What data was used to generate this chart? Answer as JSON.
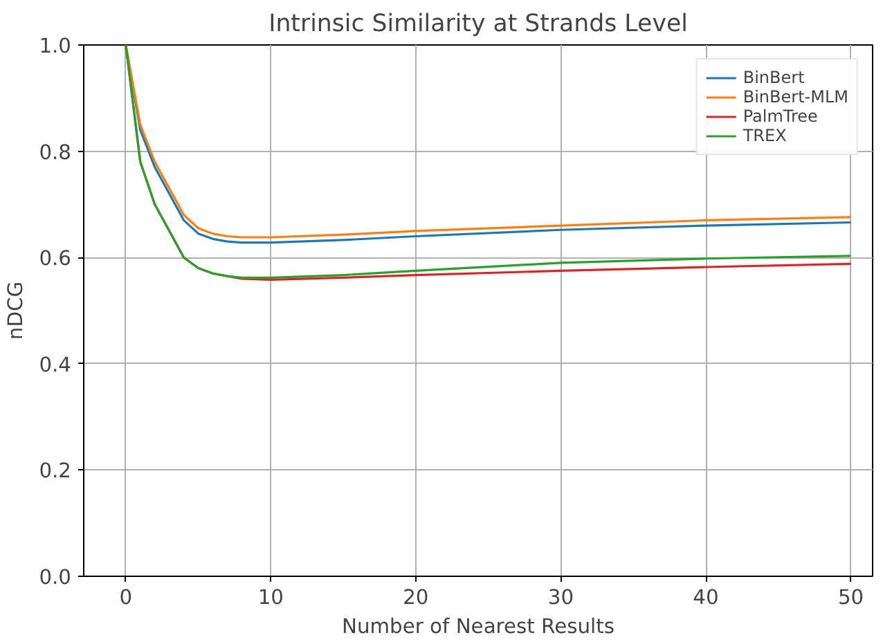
{
  "chart_data": {
    "type": "line",
    "title": "Intrinsic Similarity at Strands Level",
    "xlabel": "Number of Nearest Results",
    "ylabel": "nDCG",
    "x": [
      0,
      1,
      2,
      3,
      4,
      5,
      6,
      7,
      8,
      10,
      15,
      20,
      30,
      40,
      50
    ],
    "series": [
      {
        "name": "BinBert",
        "color": "#1f77b4",
        "values": [
          1.0,
          0.84,
          0.77,
          0.72,
          0.67,
          0.645,
          0.635,
          0.63,
          0.628,
          0.628,
          0.633,
          0.64,
          0.652,
          0.66,
          0.666
        ]
      },
      {
        "name": "BinBert-MLM",
        "color": "#ff7f0e",
        "values": [
          1.0,
          0.85,
          0.78,
          0.73,
          0.68,
          0.655,
          0.645,
          0.64,
          0.638,
          0.638,
          0.643,
          0.65,
          0.66,
          0.67,
          0.676
        ]
      },
      {
        "name": "PalmTree",
        "color": "#d62728",
        "values": [
          1.0,
          0.78,
          0.7,
          0.65,
          0.6,
          0.58,
          0.57,
          0.565,
          0.56,
          0.558,
          0.562,
          0.567,
          0.575,
          0.582,
          0.588
        ]
      },
      {
        "name": "TREX",
        "color": "#2ca02c",
        "values": [
          1.0,
          0.78,
          0.7,
          0.65,
          0.6,
          0.58,
          0.57,
          0.565,
          0.562,
          0.562,
          0.567,
          0.575,
          0.59,
          0.598,
          0.603
        ]
      }
    ],
    "xlim": [
      -2.9,
      51.5
    ],
    "ylim": [
      0.0,
      1.0
    ],
    "xticks": [
      0,
      10,
      20,
      30,
      40,
      50
    ],
    "yticks": [
      {
        "value": 0,
        "label": "0.0"
      },
      {
        "value": 0.2,
        "label": "0.2"
      },
      {
        "value": 0.4,
        "label": "0.4"
      },
      {
        "value": 0.6,
        "label": "0.6"
      },
      {
        "value": 0.8,
        "label": "0.8"
      },
      {
        "value": 1,
        "label": "1.0"
      }
    ],
    "grid": true,
    "legend": "top right",
    "marker": "none",
    "line_style": "solid"
  }
}
